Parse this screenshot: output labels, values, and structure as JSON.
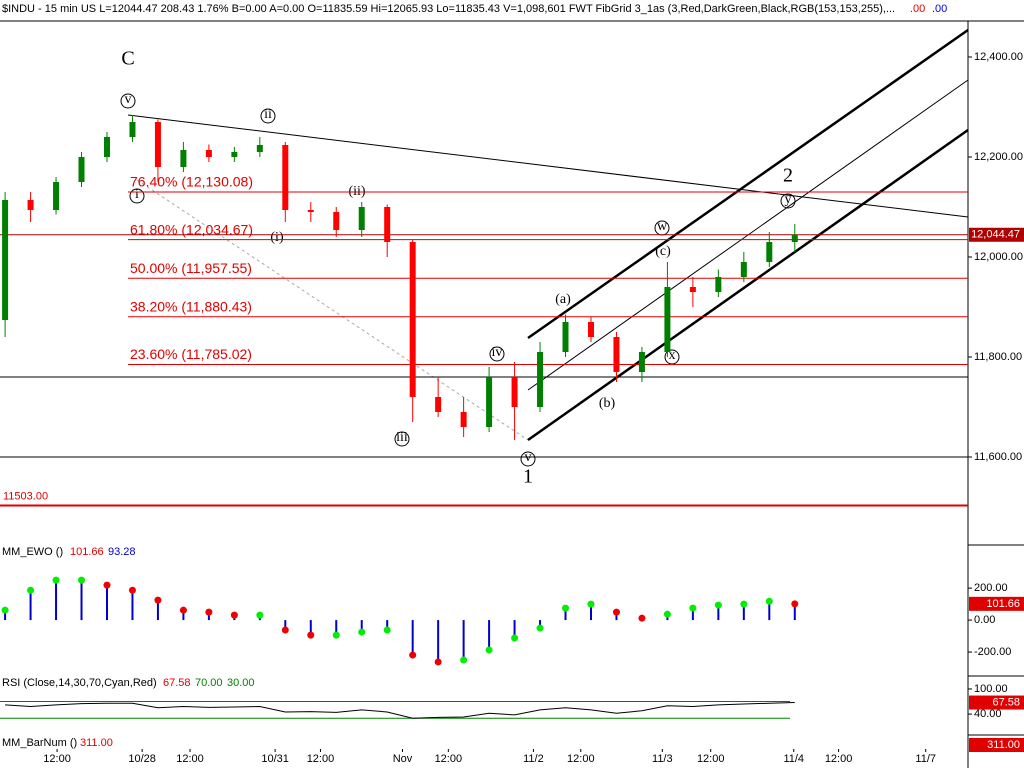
{
  "header": {
    "info": "$INDU - 15 min  US  L=12044.47  208.43  1.76%  B=0.00  A=0.00  O=11835.59  Hi=12065.93  Lo=11835.43  V=1,098,601  FWT FibGrid 3_1as (3,Red,DarkGreen,Black,RGB(153,153,255),...",
    "flag_a": ".00",
    "flag_b": ".00"
  },
  "chart_data": [
    {
      "type": "candlestick",
      "x": [
        1,
        6,
        11,
        16,
        21,
        26,
        31,
        36,
        41,
        46,
        51,
        56,
        61,
        66,
        71,
        76,
        81,
        86,
        91,
        96,
        101,
        106,
        111,
        116,
        121,
        126,
        131,
        136,
        141,
        146,
        151,
        156
      ],
      "open": [
        11874,
        12114,
        12094,
        12150,
        12200,
        12240,
        12270,
        12180,
        12214,
        12200,
        12210,
        12224,
        12094,
        12090,
        12054,
        12100,
        12030,
        11720,
        11690,
        11660,
        11760,
        11700,
        11810,
        11870,
        11840,
        11770,
        11810,
        11940,
        11930,
        11960,
        11990,
        12030
      ],
      "high": [
        12130,
        12130,
        12160,
        12210,
        12250,
        12284,
        12275,
        12230,
        12225,
        12220,
        12240,
        12230,
        12110,
        12100,
        12110,
        12105,
        12035,
        11760,
        11720,
        11780,
        11790,
        11830,
        11885,
        11880,
        11850,
        11820,
        11990,
        11960,
        11975,
        12010,
        12050,
        12065.93
      ],
      "low": [
        11840,
        12070,
        12085,
        12140,
        12190,
        12230,
        12150,
        12170,
        12190,
        12190,
        12200,
        12070,
        12070,
        12040,
        12040,
        12000,
        11670,
        11680,
        11640,
        11650,
        11634,
        11690,
        11800,
        11830,
        11750,
        11750,
        11800,
        11900,
        11920,
        11950,
        11980,
        12010
      ],
      "close": [
        12114,
        12094,
        12150,
        12200,
        12240,
        12270,
        12180,
        12214,
        12200,
        12210,
        12224,
        12094,
        12090,
        12054,
        12100,
        12030,
        11720,
        11690,
        11660,
        11760,
        11700,
        11810,
        11870,
        11840,
        11770,
        11810,
        11940,
        11930,
        11960,
        11990,
        12030,
        12044.47
      ],
      "up_color": "#008000",
      "down_color": "#ff0000",
      "xlim": [
        0,
        190
      ],
      "xticks": [
        {
          "value": 11.2,
          "label": "12:00"
        },
        {
          "value": 27.9,
          "label": "10/28"
        },
        {
          "value": 37.3,
          "label": "12:00"
        },
        {
          "value": 54,
          "label": "10/31"
        },
        {
          "value": 62.9,
          "label": "12:00"
        },
        {
          "value": 79,
          "label": "Nov"
        },
        {
          "value": 88,
          "label": "12:00"
        },
        {
          "value": 104.7,
          "label": "11/2"
        },
        {
          "value": 114,
          "label": "12:00"
        },
        {
          "value": 130,
          "label": "11/3"
        },
        {
          "value": 139.5,
          "label": "12:00"
        },
        {
          "value": 155.8,
          "label": "11/4"
        },
        {
          "value": 164.6,
          "label": "12:00"
        },
        {
          "value": 181.7,
          "label": "11/7"
        }
      ],
      "ylim": [
        11434,
        12474
      ],
      "yticks": [
        {
          "value": 12400,
          "label": "12,400.00"
        },
        {
          "value": 12200,
          "label": "12,200.00"
        },
        {
          "value": 12000,
          "label": "12,000.00"
        },
        {
          "value": 11800,
          "label": "11,800.00"
        },
        {
          "value": 11600,
          "label": "11,600.00"
        }
      ],
      "last_value": {
        "value": 12044.47,
        "label": "12,044.47"
      },
      "fib_levels": [
        {
          "value": 12130.08,
          "label": "76.40% (12,130.08)"
        },
        {
          "value": 12034.67,
          "label": "61.80% (12,034.67)"
        },
        {
          "value": 11957.55,
          "label": "50.00% (11,957.55)"
        },
        {
          "value": 11880.43,
          "label": "38.20% (11,880.43)"
        },
        {
          "value": 11785.02,
          "label": "23.60% (11,785.02)"
        }
      ],
      "fib_color": "#e00000",
      "support_lines": [
        11760,
        11600
      ],
      "stop_level": {
        "value": 11503,
        "label": "11503.00"
      },
      "annotations": [
        "C",
        "v",
        "i",
        "ii",
        "(i)",
        "(ii)",
        "iii",
        "iv",
        "v",
        "1",
        "(a)",
        "(b)",
        "(c)",
        "w",
        "x",
        "y",
        "2"
      ]
    },
    {
      "type": "bar",
      "title": "MM_EWO ()",
      "signal": 93.28,
      "x": [
        1,
        6,
        11,
        16,
        21,
        26,
        31,
        36,
        41,
        46,
        51,
        56,
        61,
        66,
        71,
        76,
        81,
        86,
        91,
        96,
        101,
        106,
        111,
        116,
        121,
        126,
        131,
        136,
        141,
        146,
        151,
        156
      ],
      "values": [
        62,
        187,
        250,
        250,
        219,
        187,
        125,
        62,
        50,
        31,
        31,
        -62,
        -94,
        -94,
        -75,
        -62,
        -219,
        -262,
        -250,
        -187,
        -112,
        -50,
        75,
        100,
        50,
        12,
        37,
        75,
        94,
        100,
        118,
        101.66
      ],
      "bar_color": "#0000cc",
      "rise_color": "#00ee00",
      "fall_color": "#ee0000",
      "ylim": [
        -350,
        470
      ],
      "yticks": [
        {
          "value": 200,
          "label": "200.00"
        },
        {
          "value": 0,
          "label": "0.00"
        },
        {
          "value": -200,
          "label": "-200.00"
        }
      ]
    },
    {
      "type": "line",
      "title": "RSI (Close,14,30,70,Cyan,Red)",
      "x": [
        1,
        6,
        11,
        16,
        21,
        26,
        31,
        36,
        41,
        46,
        51,
        56,
        61,
        66,
        71,
        76,
        81,
        86,
        91,
        96,
        101,
        106,
        111,
        116,
        121,
        126,
        131,
        136,
        141,
        146,
        151,
        156
      ],
      "values": [
        62,
        58,
        62,
        65,
        66,
        66,
        55,
        58,
        56,
        57,
        58,
        45,
        46,
        44,
        50,
        45,
        30,
        32,
        33,
        42,
        38,
        50,
        55,
        50,
        42,
        48,
        60,
        58,
        62,
        64,
        66,
        67.58
      ],
      "color": "#000000",
      "bands": [
        {
          "value": 70,
          "label": "70.00"
        },
        {
          "value": 30,
          "label": "30.00"
        }
      ],
      "ylim": [
        -10,
        131
      ],
      "yticks": [
        {
          "value": 100,
          "label": "100.00"
        },
        {
          "value": 40,
          "label": "40.00"
        }
      ]
    },
    {
      "type": "readout",
      "title": "MM_BarNum ()",
      "last": {
        "value": 311,
        "label": "311.00"
      }
    }
  ]
}
